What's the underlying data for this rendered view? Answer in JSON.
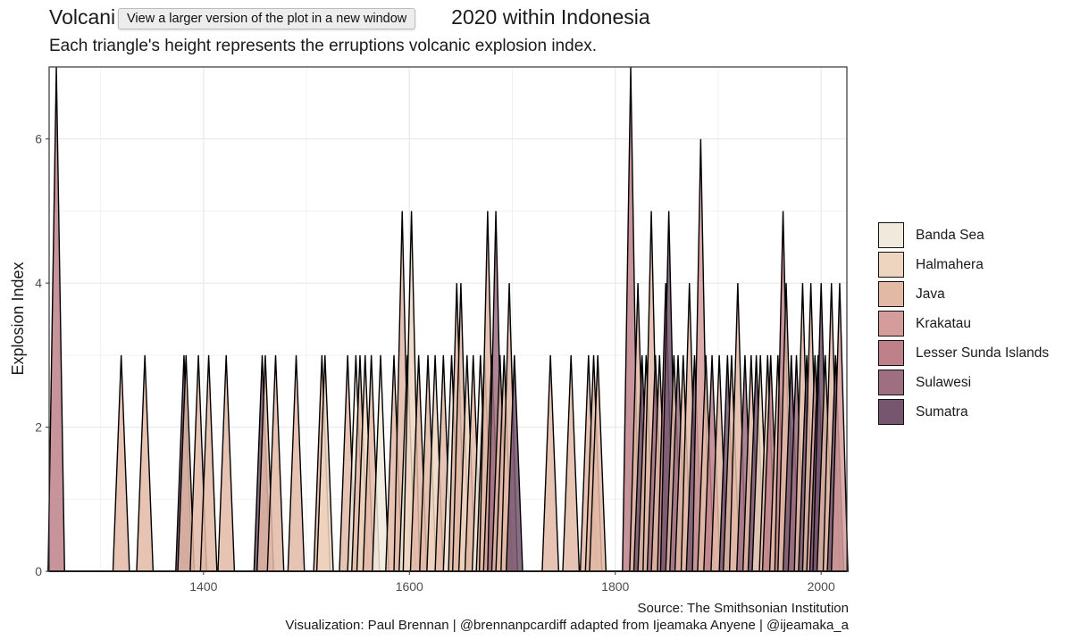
{
  "header": {
    "title_left": "Volcani",
    "title_right": "2020 within Indonesia",
    "subtitle": "Each triangle's height represents the erruptions volcanic explosion index.",
    "tooltip": "View a larger version of the plot in a new window"
  },
  "caption": {
    "source": "Source: The Smithsonian Institution",
    "credit": "Visualization: Paul Brennan | @brennanpcardiff  adapted from Ijeamaka Anyene | @ijeamaka_a"
  },
  "chart_data": {
    "type": "area",
    "mark": "triangles",
    "title": "",
    "subtitle": "Each triangle's height represents the erruptions volcanic explosion index.",
    "xlabel": "",
    "ylabel": "Explosion Index",
    "xlim": [
      1250,
      2025
    ],
    "ylim": [
      0,
      7
    ],
    "x_ticks": [
      1400,
      1600,
      1800,
      2000
    ],
    "y_ticks": [
      0,
      2,
      4,
      6
    ],
    "grid": true,
    "legend_position": "right",
    "triangle_half_width_years": 8,
    "series": [
      {
        "name": "Banda Sea",
        "color": "#f1e9dc"
      },
      {
        "name": "Halmahera",
        "color": "#eed5bf"
      },
      {
        "name": "Java",
        "color": "#e2b9a4"
      },
      {
        "name": "Krakatau",
        "color": "#d49c9a"
      },
      {
        "name": "Lesser Sunda Islands",
        "color": "#be8189"
      },
      {
        "name": "Sulawesi",
        "color": "#9d6f80"
      },
      {
        "name": "Sumatra",
        "color": "#76566e"
      }
    ],
    "eruptions": [
      {
        "year": 1257,
        "vei": 7,
        "region": "Lesser Sunda Islands"
      },
      {
        "year": 1320,
        "vei": 3,
        "region": "Java"
      },
      {
        "year": 1343,
        "vei": 3,
        "region": "Java"
      },
      {
        "year": 1381,
        "vei": 3,
        "region": "Sumatra"
      },
      {
        "year": 1383,
        "vei": 3,
        "region": "Java"
      },
      {
        "year": 1395,
        "vei": 3,
        "region": "Java"
      },
      {
        "year": 1405,
        "vei": 3,
        "region": "Java"
      },
      {
        "year": 1422,
        "vei": 3,
        "region": "Java"
      },
      {
        "year": 1457,
        "vei": 3,
        "region": "Sumatra"
      },
      {
        "year": 1460,
        "vei": 3,
        "region": "Java"
      },
      {
        "year": 1470,
        "vei": 3,
        "region": "Java"
      },
      {
        "year": 1490,
        "vei": 3,
        "region": "Java"
      },
      {
        "year": 1515,
        "vei": 3,
        "region": "Java"
      },
      {
        "year": 1518,
        "vei": 3,
        "region": "Halmahera"
      },
      {
        "year": 1540,
        "vei": 3,
        "region": "Java"
      },
      {
        "year": 1548,
        "vei": 3,
        "region": "Banda Sea"
      },
      {
        "year": 1552,
        "vei": 3,
        "region": "Java"
      },
      {
        "year": 1557,
        "vei": 3,
        "region": "Halmahera"
      },
      {
        "year": 1563,
        "vei": 3,
        "region": "Java"
      },
      {
        "year": 1572,
        "vei": 3,
        "region": "Banda Sea"
      },
      {
        "year": 1585,
        "vei": 3,
        "region": "Java"
      },
      {
        "year": 1593,
        "vei": 5,
        "region": "Java"
      },
      {
        "year": 1598,
        "vei": 3,
        "region": "Banda Sea"
      },
      {
        "year": 1602,
        "vei": 5,
        "region": "Halmahera"
      },
      {
        "year": 1609,
        "vei": 3,
        "region": "Java"
      },
      {
        "year": 1618,
        "vei": 3,
        "region": "Java"
      },
      {
        "year": 1625,
        "vei": 3,
        "region": "Halmahera"
      },
      {
        "year": 1633,
        "vei": 3,
        "region": "Java"
      },
      {
        "year": 1641,
        "vei": 3,
        "region": "Banda Sea"
      },
      {
        "year": 1646,
        "vei": 4,
        "region": "Java"
      },
      {
        "year": 1650,
        "vei": 4,
        "region": "Java"
      },
      {
        "year": 1656,
        "vei": 3,
        "region": "Halmahera"
      },
      {
        "year": 1662,
        "vei": 3,
        "region": "Java"
      },
      {
        "year": 1669,
        "vei": 3,
        "region": "Banda Sea"
      },
      {
        "year": 1673,
        "vei": 3,
        "region": "Java"
      },
      {
        "year": 1676,
        "vei": 5,
        "region": "Java"
      },
      {
        "year": 1680,
        "vei": 3,
        "region": "Krakatau"
      },
      {
        "year": 1684,
        "vei": 5,
        "region": "Sulawesi"
      },
      {
        "year": 1688,
        "vei": 3,
        "region": "Java"
      },
      {
        "year": 1692,
        "vei": 3,
        "region": "Java"
      },
      {
        "year": 1697,
        "vei": 4,
        "region": "Java"
      },
      {
        "year": 1702,
        "vei": 3,
        "region": "Sumatra"
      },
      {
        "year": 1737,
        "vei": 3,
        "region": "Java"
      },
      {
        "year": 1757,
        "vei": 3,
        "region": "Java"
      },
      {
        "year": 1774,
        "vei": 3,
        "region": "Java"
      },
      {
        "year": 1779,
        "vei": 3,
        "region": "Java"
      },
      {
        "year": 1783,
        "vei": 3,
        "region": "Java"
      },
      {
        "year": 1815,
        "vei": 7,
        "region": "Lesser Sunda Islands"
      },
      {
        "year": 1822,
        "vei": 4,
        "region": "Java"
      },
      {
        "year": 1826,
        "vei": 3,
        "region": "Sumatra"
      },
      {
        "year": 1830,
        "vei": 3,
        "region": "Java"
      },
      {
        "year": 1835,
        "vei": 5,
        "region": "Java"
      },
      {
        "year": 1839,
        "vei": 3,
        "region": "Sulawesi"
      },
      {
        "year": 1843,
        "vei": 3,
        "region": "Java"
      },
      {
        "year": 1849,
        "vei": 4,
        "region": "Lesser Sunda Islands"
      },
      {
        "year": 1852,
        "vei": 5,
        "region": "Sumatra"
      },
      {
        "year": 1857,
        "vei": 3,
        "region": "Java"
      },
      {
        "year": 1861,
        "vei": 3,
        "region": "Sulawesi"
      },
      {
        "year": 1866,
        "vei": 3,
        "region": "Java"
      },
      {
        "year": 1872,
        "vei": 4,
        "region": "Java"
      },
      {
        "year": 1877,
        "vei": 3,
        "region": "Sumatra"
      },
      {
        "year": 1883,
        "vei": 6,
        "region": "Krakatau"
      },
      {
        "year": 1888,
        "vei": 3,
        "region": "Java"
      },
      {
        "year": 1894,
        "vei": 3,
        "region": "Lesser Sunda Islands"
      },
      {
        "year": 1901,
        "vei": 3,
        "region": "Java"
      },
      {
        "year": 1909,
        "vei": 3,
        "region": "Sumatra"
      },
      {
        "year": 1913,
        "vei": 3,
        "region": "Java"
      },
      {
        "year": 1919,
        "vei": 4,
        "region": "Java"
      },
      {
        "year": 1926,
        "vei": 3,
        "region": "Sulawesi"
      },
      {
        "year": 1932,
        "vei": 3,
        "region": "Java"
      },
      {
        "year": 1937,
        "vei": 3,
        "region": "Sumatra"
      },
      {
        "year": 1941,
        "vei": 3,
        "region": "Halmahera"
      },
      {
        "year": 1948,
        "vei": 3,
        "region": "Java"
      },
      {
        "year": 1951,
        "vei": 3,
        "region": "Lesser Sunda Islands"
      },
      {
        "year": 1958,
        "vei": 3,
        "region": "Java"
      },
      {
        "year": 1963,
        "vei": 5,
        "region": "Lesser Sunda Islands"
      },
      {
        "year": 1966,
        "vei": 4,
        "region": "Java"
      },
      {
        "year": 1971,
        "vei": 3,
        "region": "Sumatra"
      },
      {
        "year": 1976,
        "vei": 3,
        "region": "Sulawesi"
      },
      {
        "year": 1982,
        "vei": 4,
        "region": "Java"
      },
      {
        "year": 1986,
        "vei": 3,
        "region": "Sumatra"
      },
      {
        "year": 1990,
        "vei": 4,
        "region": "Java"
      },
      {
        "year": 1994,
        "vei": 3,
        "region": "Krakatau"
      },
      {
        "year": 1997,
        "vei": 3,
        "region": "Sumatra"
      },
      {
        "year": 2000,
        "vei": 4,
        "region": "Sumatra"
      },
      {
        "year": 2004,
        "vei": 3,
        "region": "Java"
      },
      {
        "year": 2010,
        "vei": 4,
        "region": "Java"
      },
      {
        "year": 2014,
        "vei": 3,
        "region": "Sumatra"
      },
      {
        "year": 2018,
        "vei": 4,
        "region": "Krakatau"
      }
    ]
  }
}
